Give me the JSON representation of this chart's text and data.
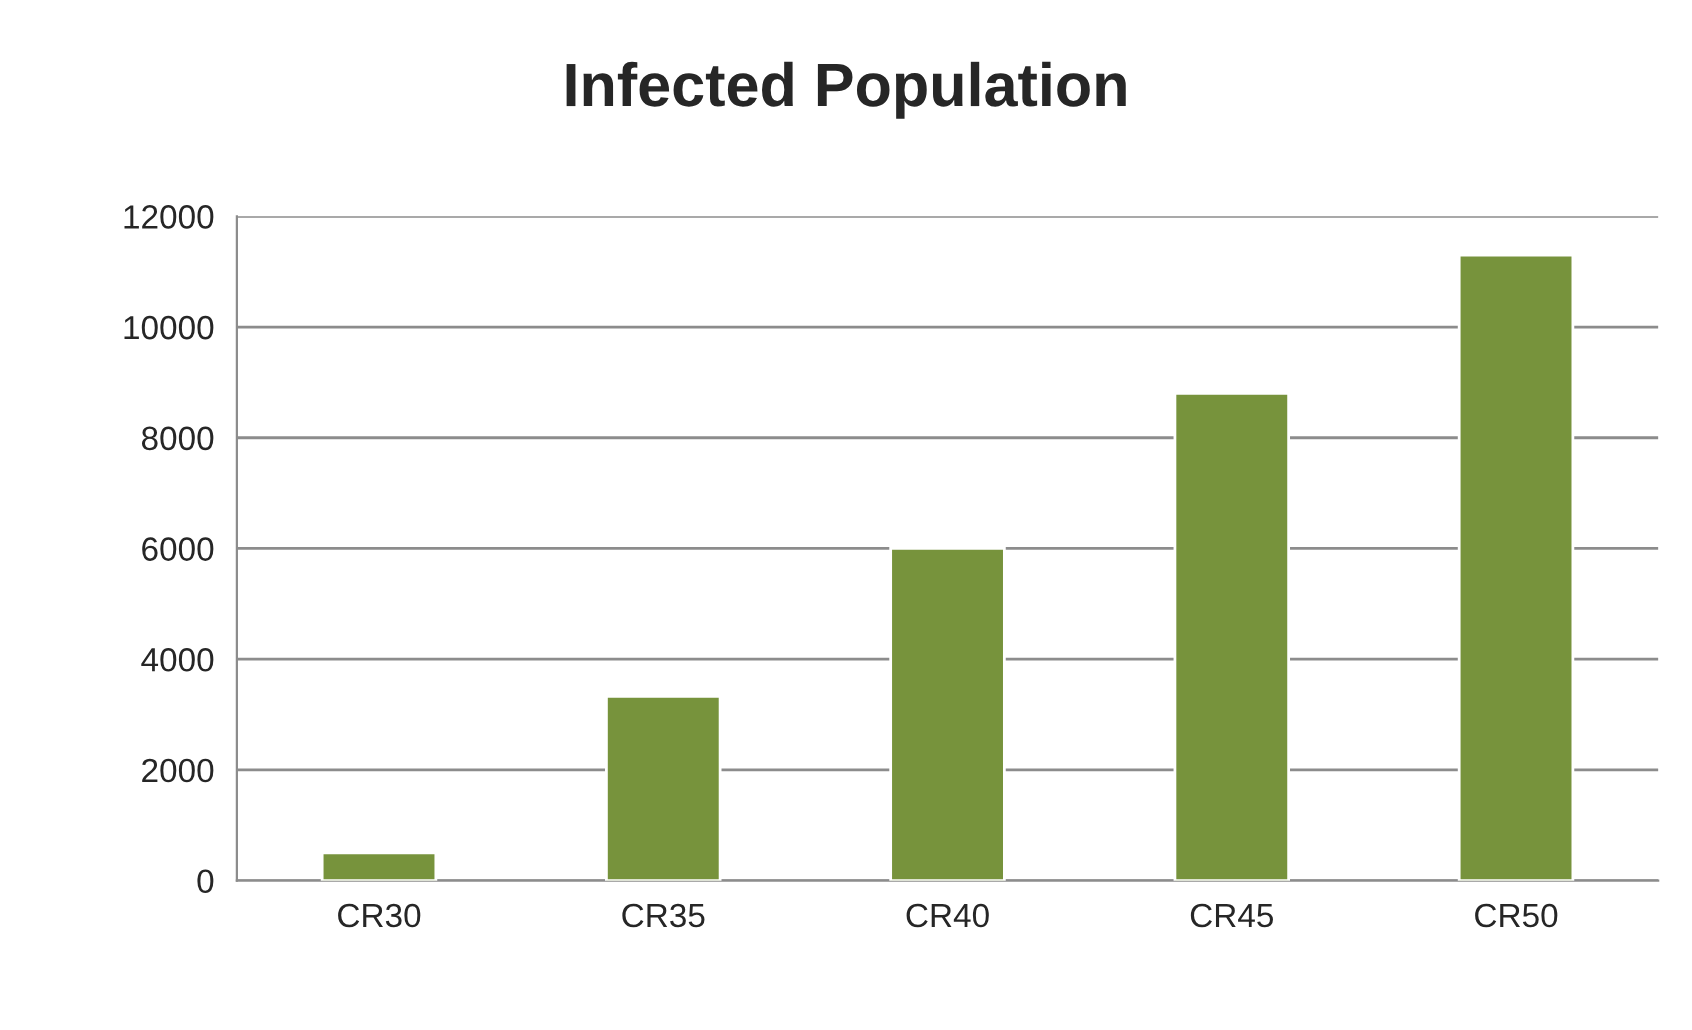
{
  "chart_data": {
    "type": "bar",
    "title": "Infected Population",
    "categories": [
      "CR30",
      "CR35",
      "CR40",
      "CR45",
      "CR50"
    ],
    "values": [
      500,
      3330,
      6000,
      8800,
      11300
    ],
    "color": "#77933c",
    "ylim": [
      0,
      12000
    ],
    "yticks": [
      0,
      2000,
      4000,
      6000,
      8000,
      10000,
      12000
    ],
    "grid": "y"
  }
}
